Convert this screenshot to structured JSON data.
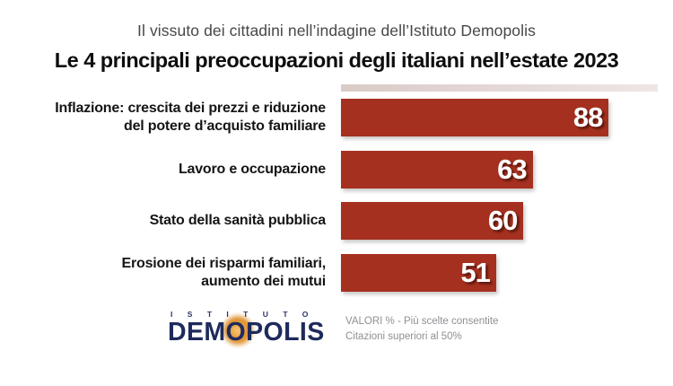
{
  "chart_data": {
    "type": "bar",
    "orientation": "horizontal",
    "suptitle": "Il vissuto dei cittadini nell’indagine dell’Istituto Demopolis",
    "title": "Le 4 principali preoccupazioni degli italiani nell’estate 2023",
    "categories": [
      "Inflazione: crescita dei prezzi e riduzione\ndel potere d’acquisto familiare",
      "Lavoro e occupazione",
      "Stato della sanità pubblica",
      "Erosione dei risparmi familiari,\naumento dei mutui"
    ],
    "values": [
      88,
      63,
      60,
      51
    ],
    "unit": "%",
    "xlim": [
      0,
      100
    ],
    "bar_color": "#a5301f",
    "value_label_color": "#ffffff",
    "value_labels_inside": true,
    "grid": false,
    "legend": false,
    "annotations": [
      "VALORI % - Più scelte consentite",
      "Citazioni superiori al 50%"
    ]
  },
  "footer": {
    "logo_top": "ISTITUTO",
    "logo_name": "DEMOPOLIS"
  },
  "colors": {
    "bar_red": "#a5301f",
    "logo_navy": "#1f2a5c",
    "logo_orange": "#dc8a25",
    "suptitle_gray": "#474747",
    "notes_gray": "#8d9094"
  }
}
